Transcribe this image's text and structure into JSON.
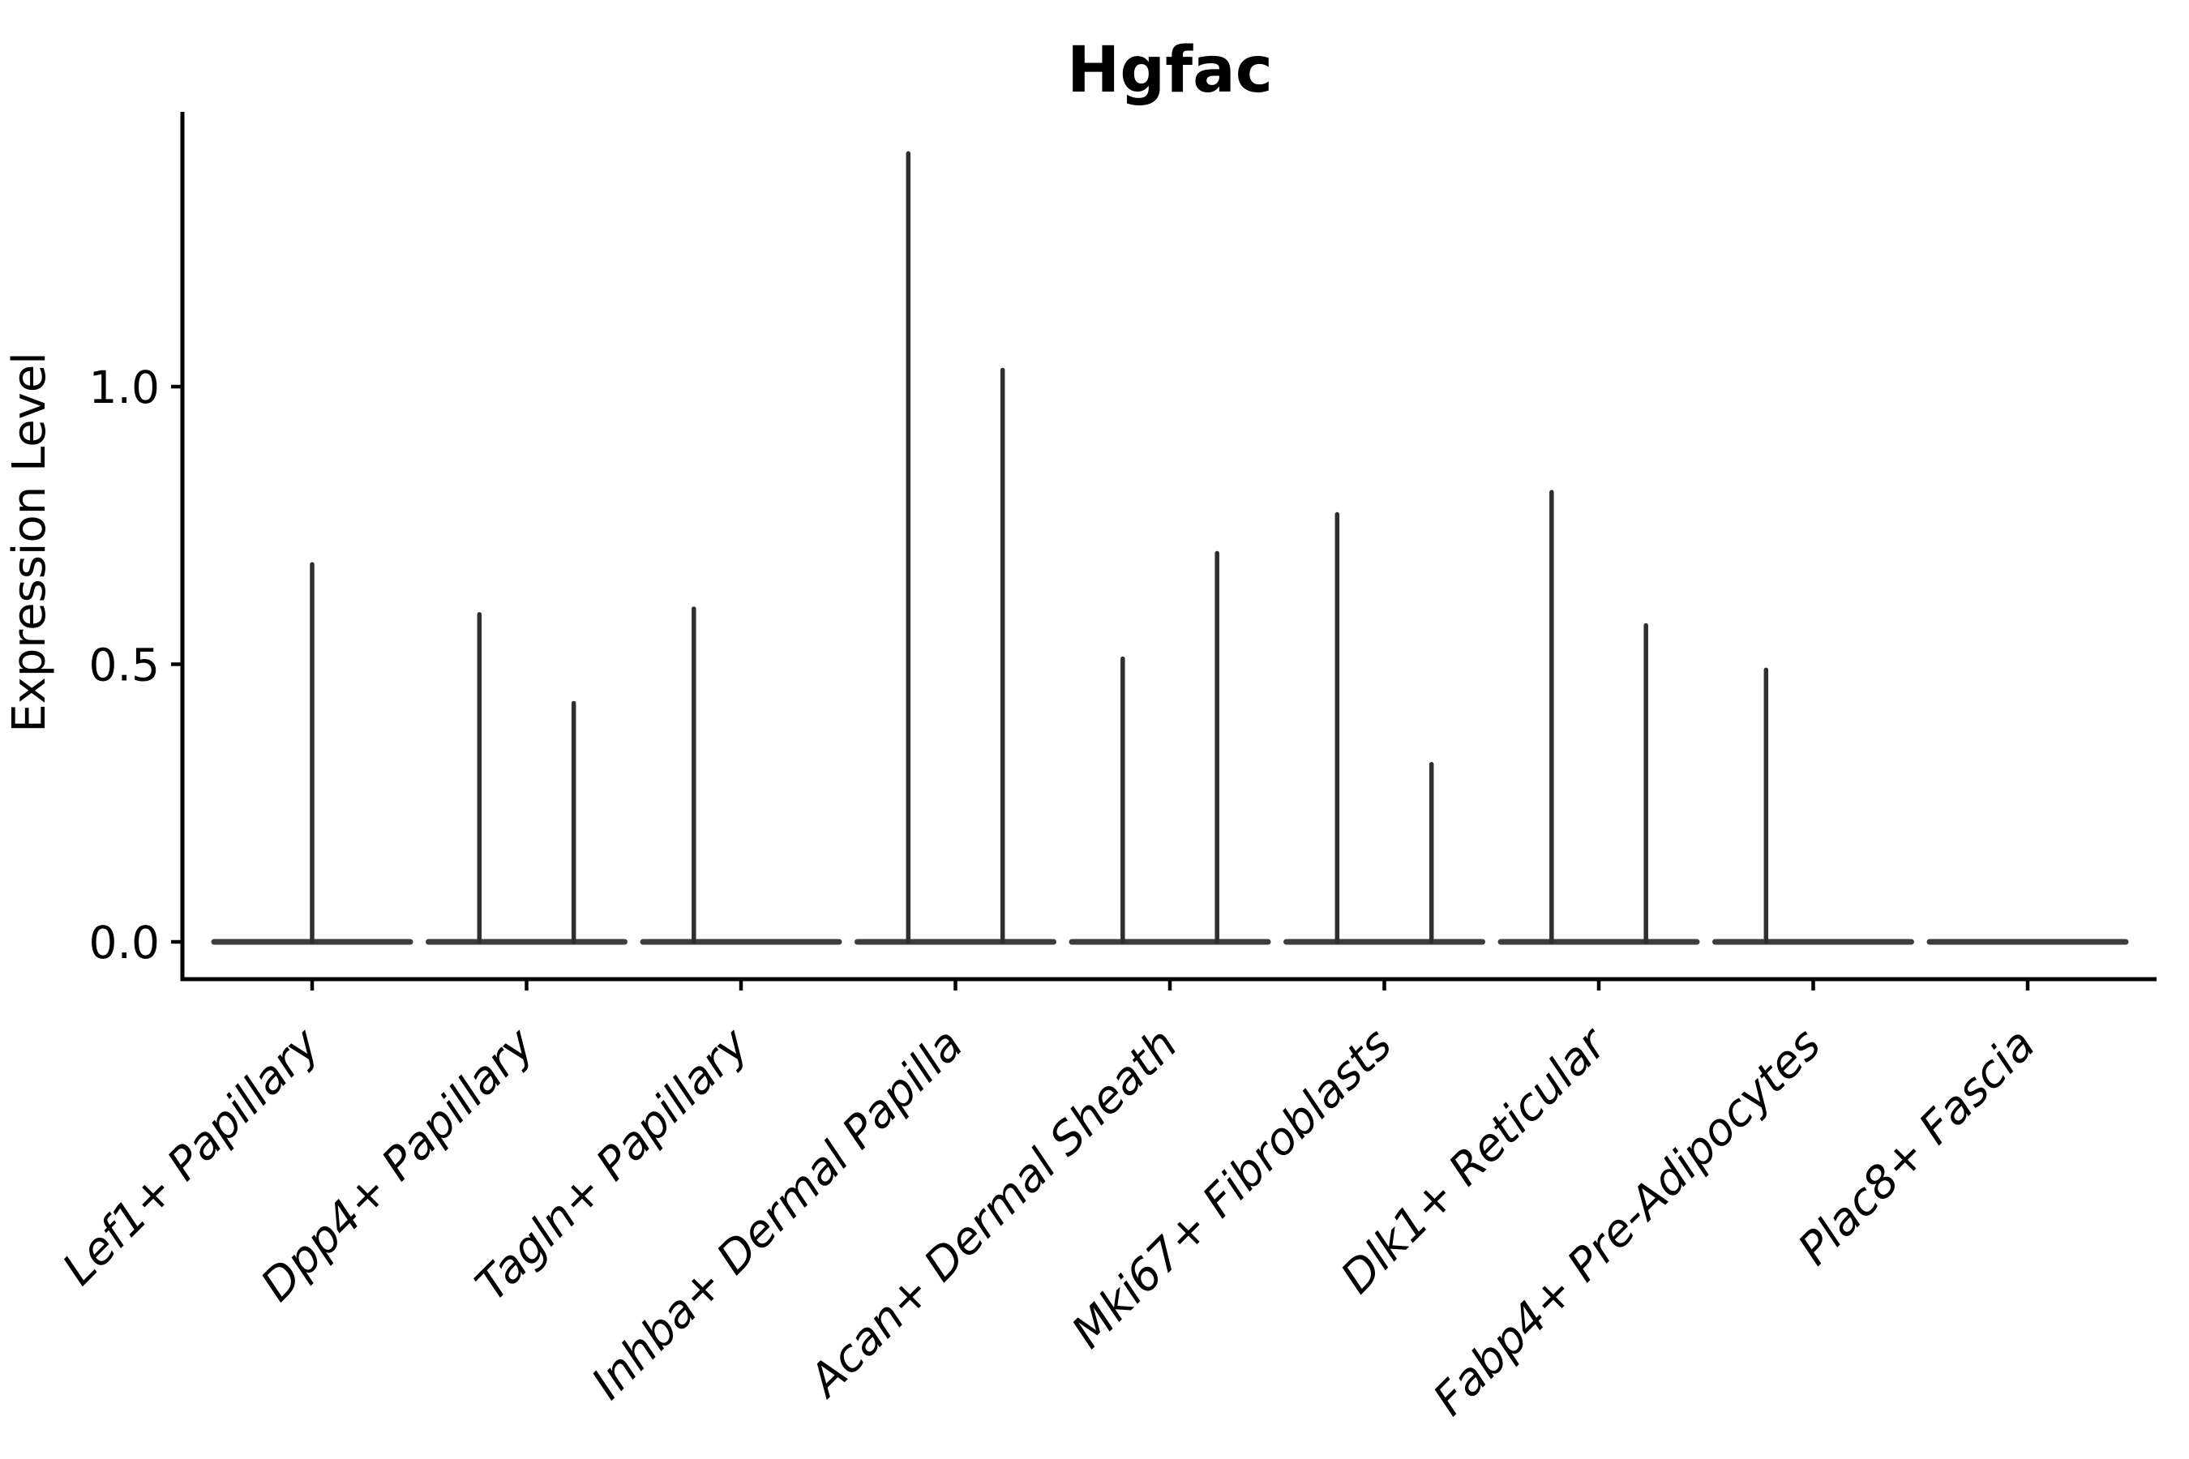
{
  "chart_data": {
    "type": "violin",
    "title": "Hgfac",
    "ylabel": "Expression Level",
    "xlabel": "",
    "ylim": [
      0,
      1.49
    ],
    "grid": false,
    "legend": "none",
    "yticks": {
      "values": [
        0.0,
        0.5,
        1.0
      ],
      "labels": [
        "0.0",
        "0.5",
        "1.0"
      ]
    },
    "categories": [
      "Lef1+ Papillary",
      "Dpp4+ Papillary",
      "Tagln+ Papillary",
      "Inhba+ Dermal Papilla",
      "Acan+ Dermal Sheath",
      "Mki67+ Fibroblasts",
      "Dlk1+ Reticular",
      "Fabp4+ Pre-Adipocytes",
      "Plac8+ Fascia"
    ],
    "violins": [
      {
        "category": "Lef1+ Papillary",
        "zero_baseline": true,
        "spikes": [
          {
            "offset": 0.0,
            "max": 0.68
          }
        ]
      },
      {
        "category": "Dpp4+ Papillary",
        "zero_baseline": true,
        "spikes": [
          {
            "offset": -0.22,
            "max": 0.59
          },
          {
            "offset": 0.22,
            "max": 0.43
          }
        ]
      },
      {
        "category": "Tagln+ Papillary",
        "zero_baseline": true,
        "spikes": [
          {
            "offset": -0.22,
            "max": 0.6
          }
        ]
      },
      {
        "category": "Inhba+ Dermal Papilla",
        "zero_baseline": true,
        "spikes": [
          {
            "offset": -0.22,
            "max": 1.42
          },
          {
            "offset": 0.22,
            "max": 1.03
          }
        ]
      },
      {
        "category": "Acan+ Dermal Sheath",
        "zero_baseline": true,
        "spikes": [
          {
            "offset": -0.22,
            "max": 0.51
          },
          {
            "offset": 0.22,
            "max": 0.7
          }
        ]
      },
      {
        "category": "Mki67+ Fibroblasts",
        "zero_baseline": true,
        "spikes": [
          {
            "offset": -0.22,
            "max": 0.77
          },
          {
            "offset": 0.22,
            "max": 0.32
          }
        ]
      },
      {
        "category": "Dlk1+ Reticular",
        "zero_baseline": true,
        "spikes": [
          {
            "offset": -0.22,
            "max": 0.81
          },
          {
            "offset": 0.22,
            "max": 0.57
          }
        ]
      },
      {
        "category": "Fabp4+ Pre-Adipocytes",
        "zero_baseline": true,
        "spikes": [
          {
            "offset": -0.22,
            "max": 0.49
          }
        ]
      },
      {
        "category": "Plac8+ Fascia",
        "zero_baseline": true,
        "spikes": []
      }
    ],
    "colors": {
      "spike": "#2f2f2f",
      "baseline": "#3d3d3d",
      "axis": "#000000",
      "text": "#000000",
      "background": "#ffffff"
    }
  }
}
